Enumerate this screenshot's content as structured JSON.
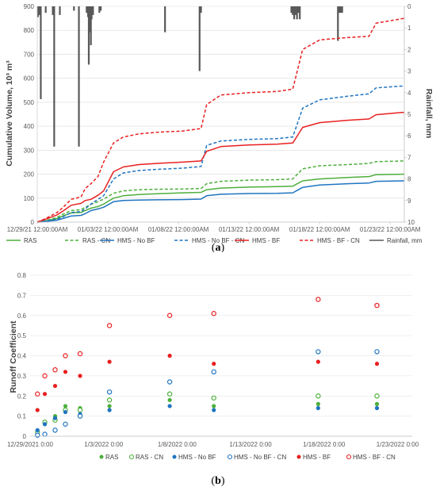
{
  "chart_data": [
    {
      "type": "line",
      "panel_label": [
        "(",
        "a",
        ")"
      ],
      "ylabel": "Cumulative Volume, 10³ m³",
      "y2label": "Rainfall, mm",
      "ylim": [
        0,
        900
      ],
      "yticks": [
        "0",
        "100",
        "200",
        "300",
        "400",
        "500",
        "600",
        "700",
        "800",
        "900"
      ],
      "y2lim": [
        10,
        0
      ],
      "y2ticks": [
        "0",
        "1",
        "2",
        "3",
        "4",
        "5",
        "6",
        "7",
        "8",
        "9",
        "10"
      ],
      "xlim_days": [
        0,
        26
      ],
      "xticks": [
        {
          "day": 0,
          "label": "12/29/21 12:00:00AM"
        },
        {
          "day": 5,
          "label": "01/03/22 12:00:00AM"
        },
        {
          "day": 10,
          "label": "01/08/22 12:00:00AM"
        },
        {
          "day": 15,
          "label": "01/13/22 12:00:00AM"
        },
        {
          "day": 20,
          "label": "01/18/22 12:00:00AM"
        },
        {
          "day": 25,
          "label": "01/23/22 12:00:00AM"
        }
      ],
      "series": [
        {
          "name": "RAS",
          "color": "#4daf3c",
          "dash": false,
          "points": [
            [
              0,
              0
            ],
            [
              0.6,
              5
            ],
            [
              1.4,
              15
            ],
            [
              1.8,
              25
            ],
            [
              2.4,
              38
            ],
            [
              3.1,
              40
            ],
            [
              3.4,
              48
            ],
            [
              3.8,
              58
            ],
            [
              4.3,
              65
            ],
            [
              4.7,
              75
            ],
            [
              5.4,
              100
            ],
            [
              6.1,
              110
            ],
            [
              7.2,
              115
            ],
            [
              8.5,
              118
            ],
            [
              10.3,
              122
            ],
            [
              11.6,
              124
            ],
            [
              12.0,
              135
            ],
            [
              13.0,
              142
            ],
            [
              15.0,
              146
            ],
            [
              17.0,
              148
            ],
            [
              18.1,
              150
            ],
            [
              18.8,
              172
            ],
            [
              20.0,
              180
            ],
            [
              22.0,
              186
            ],
            [
              23.5,
              190
            ],
            [
              24.0,
              198
            ],
            [
              26,
              200
            ]
          ]
        },
        {
          "name": "RAS - CN",
          "color": "#4daf3c",
          "dash": true,
          "points": [
            [
              0,
              0
            ],
            [
              0.6,
              6
            ],
            [
              1.4,
              20
            ],
            [
              1.8,
              32
            ],
            [
              2.4,
              48
            ],
            [
              3.1,
              52
            ],
            [
              3.4,
              62
            ],
            [
              3.8,
              74
            ],
            [
              4.3,
              85
            ],
            [
              4.7,
              96
            ],
            [
              5.4,
              120
            ],
            [
              6.1,
              130
            ],
            [
              7.2,
              135
            ],
            [
              8.5,
              137
            ],
            [
              10.3,
              138
            ],
            [
              11.6,
              140
            ],
            [
              12.0,
              160
            ],
            [
              13.0,
              170
            ],
            [
              15.0,
              175
            ],
            [
              17.0,
              177
            ],
            [
              18.1,
              180
            ],
            [
              18.8,
              222
            ],
            [
              20.0,
              235
            ],
            [
              22.0,
              240
            ],
            [
              23.5,
              245
            ],
            [
              24.0,
              252
            ],
            [
              26,
              255
            ]
          ]
        },
        {
          "name": "HMS - No BF",
          "color": "#1f74c1",
          "dash": false,
          "points": [
            [
              0,
              0
            ],
            [
              0.6,
              3
            ],
            [
              1.4,
              8
            ],
            [
              1.8,
              15
            ],
            [
              2.4,
              25
            ],
            [
              3.1,
              28
            ],
            [
              3.4,
              35
            ],
            [
              3.8,
              48
            ],
            [
              4.3,
              55
            ],
            [
              4.7,
              62
            ],
            [
              5.4,
              85
            ],
            [
              6.1,
              90
            ],
            [
              7.2,
              92
            ],
            [
              8.5,
              93
            ],
            [
              10.3,
              94
            ],
            [
              11.6,
              96
            ],
            [
              12.0,
              110
            ],
            [
              13.0,
              116
            ],
            [
              15.0,
              119
            ],
            [
              17.0,
              120
            ],
            [
              18.1,
              122
            ],
            [
              18.8,
              145
            ],
            [
              20.0,
              155
            ],
            [
              22.0,
              160
            ],
            [
              23.5,
              163
            ],
            [
              24.0,
              170
            ],
            [
              26,
              172
            ]
          ]
        },
        {
          "name": "HMS - No BF - CN",
          "color": "#1f74c1",
          "dash": true,
          "points": [
            [
              0,
              0
            ],
            [
              0.6,
              4
            ],
            [
              1.4,
              12
            ],
            [
              1.8,
              22
            ],
            [
              2.4,
              40
            ],
            [
              3.1,
              44
            ],
            [
              3.4,
              55
            ],
            [
              3.8,
              75
            ],
            [
              4.3,
              95
            ],
            [
              4.7,
              110
            ],
            [
              5.4,
              180
            ],
            [
              6.1,
              205
            ],
            [
              7.2,
              215
            ],
            [
              8.5,
              220
            ],
            [
              10.3,
              225
            ],
            [
              11.6,
              232
            ],
            [
              12.0,
              320
            ],
            [
              13.0,
              338
            ],
            [
              15.0,
              345
            ],
            [
              17.0,
              348
            ],
            [
              18.1,
              355
            ],
            [
              18.8,
              475
            ],
            [
              20.0,
              510
            ],
            [
              22.0,
              525
            ],
            [
              23.5,
              535
            ],
            [
              24.0,
              560
            ],
            [
              26,
              568
            ]
          ]
        },
        {
          "name": "HMS - BF",
          "color": "#e82020",
          "dash": false,
          "points": [
            [
              0,
              0
            ],
            [
              0.6,
              12
            ],
            [
              1.4,
              30
            ],
            [
              1.8,
              45
            ],
            [
              2.4,
              70
            ],
            [
              3.1,
              78
            ],
            [
              3.4,
              90
            ],
            [
              3.8,
              95
            ],
            [
              4.3,
              112
            ],
            [
              4.7,
              130
            ],
            [
              5.4,
              210
            ],
            [
              6.1,
              230
            ],
            [
              7.2,
              240
            ],
            [
              8.5,
              245
            ],
            [
              10.3,
              250
            ],
            [
              11.6,
              255
            ],
            [
              12.0,
              295
            ],
            [
              13.0,
              315
            ],
            [
              15.0,
              322
            ],
            [
              17.0,
              325
            ],
            [
              18.1,
              330
            ],
            [
              18.8,
              395
            ],
            [
              20.0,
              415
            ],
            [
              22.0,
              425
            ],
            [
              23.5,
              430
            ],
            [
              24.0,
              448
            ],
            [
              26,
              458
            ]
          ]
        },
        {
          "name": "HMS - BF - CN",
          "color": "#e82020",
          "dash": true,
          "points": [
            [
              0,
              0
            ],
            [
              0.6,
              15
            ],
            [
              1.4,
              40
            ],
            [
              1.8,
              60
            ],
            [
              2.4,
              95
            ],
            [
              3.1,
              105
            ],
            [
              3.4,
              140
            ],
            [
              3.8,
              160
            ],
            [
              4.3,
              190
            ],
            [
              4.7,
              250
            ],
            [
              5.4,
              330
            ],
            [
              6.1,
              355
            ],
            [
              7.2,
              368
            ],
            [
              8.5,
              375
            ],
            [
              10.3,
              380
            ],
            [
              11.6,
              390
            ],
            [
              12.0,
              490
            ],
            [
              13.0,
              530
            ],
            [
              15.0,
              540
            ],
            [
              17.0,
              545
            ],
            [
              18.1,
              555
            ],
            [
              18.8,
              720
            ],
            [
              20.0,
              760
            ],
            [
              22.0,
              770
            ],
            [
              23.5,
              775
            ],
            [
              24.0,
              830
            ],
            [
              26,
              850
            ]
          ]
        }
      ],
      "rainfall": {
        "name": "Rainfall, mm",
        "color": "#595959",
        "bars": [
          [
            0.05,
            0.5
          ],
          [
            0.15,
            0.4
          ],
          [
            0.25,
            4.3
          ],
          [
            0.6,
            0.3
          ],
          [
            1.1,
            0.4
          ],
          [
            1.2,
            6.5
          ],
          [
            1.6,
            0.4
          ],
          [
            2.6,
            0.2
          ],
          [
            2.95,
            6.5
          ],
          [
            3.5,
            0.3
          ],
          [
            3.6,
            0.5
          ],
          [
            3.65,
            2.7
          ],
          [
            3.72,
            1.2
          ],
          [
            3.8,
            1.8
          ],
          [
            3.85,
            0.6
          ],
          [
            3.95,
            0.4
          ],
          [
            4.4,
            0.3
          ],
          [
            4.5,
            0.2
          ],
          [
            9.05,
            1.2
          ],
          [
            11.5,
            3.0
          ],
          [
            11.6,
            0.3
          ],
          [
            18.0,
            0.3
          ],
          [
            18.1,
            0.4
          ],
          [
            18.2,
            0.6
          ],
          [
            18.3,
            0.4
          ],
          [
            18.4,
            0.6
          ],
          [
            18.5,
            0.3
          ],
          [
            18.6,
            0.6
          ],
          [
            21.3,
            1.6
          ],
          [
            21.4,
            0.3
          ],
          [
            21.5,
            0.3
          ],
          [
            21.6,
            0.3
          ]
        ]
      }
    },
    {
      "type": "scatter",
      "panel_label": [
        "(",
        "b",
        ")"
      ],
      "ylabel": "Runoff Coefficient",
      "ylim": [
        0,
        0.8
      ],
      "yticks": [
        "0",
        "0.1",
        "0.2",
        "0.3",
        "0.4",
        "0.5",
        "0.6",
        "0.7",
        "0.8"
      ],
      "xlim_days": [
        0,
        26
      ],
      "xticks": [
        {
          "day": 0,
          "label": "12/29/2021 0:00"
        },
        {
          "day": 5,
          "label": "1/3/2022 0:00"
        },
        {
          "day": 10,
          "label": "1/8/2022 0:00"
        },
        {
          "day": 15,
          "label": "1/13/2022 0:00"
        },
        {
          "day": 20,
          "label": "1/18/2022 0:00"
        },
        {
          "day": 25,
          "label": "1/23/2022 0:00"
        }
      ],
      "x_days": [
        0.5,
        1.0,
        1.7,
        2.4,
        3.4,
        5.4,
        9.5,
        12.5,
        19.6,
        23.6
      ],
      "series": [
        {
          "name": "RAS",
          "color": "#4daf3c",
          "filled": true,
          "values": [
            0.02,
            0.06,
            0.1,
            0.15,
            0.14,
            0.15,
            0.18,
            0.15,
            0.16,
            0.16
          ]
        },
        {
          "name": "RAS - CN",
          "color": "#4daf3c",
          "filled": false,
          "values": [
            0.02,
            0.07,
            0.08,
            0.13,
            0.13,
            0.18,
            0.21,
            0.19,
            0.2,
            0.2
          ]
        },
        {
          "name": "HMS - No BF",
          "color": "#1f74c1",
          "filled": true,
          "values": [
            0.03,
            0.06,
            0.09,
            0.12,
            0.11,
            0.13,
            0.15,
            0.13,
            0.14,
            0.14
          ]
        },
        {
          "name": "HMS - No BF - CN",
          "color": "#1f74c1",
          "filled": false,
          "values": [
            0.005,
            0.01,
            0.03,
            0.06,
            0.1,
            0.22,
            0.27,
            0.32,
            0.42,
            0.42
          ]
        },
        {
          "name": "HMS - BF",
          "color": "#e82020",
          "filled": true,
          "values": [
            0.13,
            0.21,
            0.25,
            0.32,
            0.3,
            0.37,
            0.4,
            0.36,
            0.37,
            0.36
          ]
        },
        {
          "name": "HMS - BF - CN",
          "color": "#e82020",
          "filled": false,
          "values": [
            0.21,
            0.3,
            0.33,
            0.4,
            0.41,
            0.55,
            0.6,
            0.61,
            0.68,
            0.65
          ]
        }
      ]
    }
  ]
}
